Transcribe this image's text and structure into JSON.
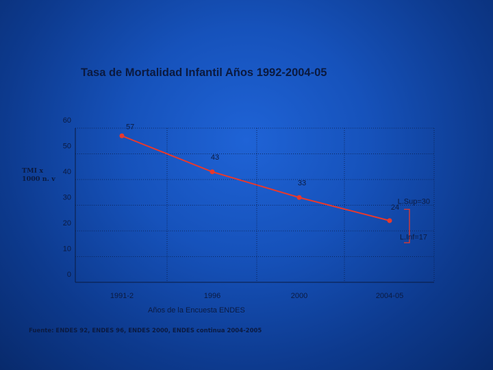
{
  "slide": {
    "y_axis_label_line1": "TMI x",
    "y_axis_label_line2": "1000 n. v",
    "source_note": "Fuente: ENDES 92, ENDES 96, ENDES 2000, ENDES continua 2004-2005"
  },
  "chart_data": {
    "type": "line",
    "title": "Tasa de Mortalidad Infantil Años 1992-2004-05",
    "xlabel": "Años de la Encuesta ENDES",
    "ylabel": "TMI x 1000 n. v",
    "categories": [
      "1991-2",
      "1996",
      "2000",
      "2004-05"
    ],
    "series": [
      {
        "name": "TMI",
        "values": [
          57,
          43,
          33,
          24
        ],
        "color": "#e8392c"
      }
    ],
    "ylim": [
      0,
      60
    ],
    "yticks": [
      0,
      10,
      20,
      30,
      40,
      50,
      60
    ],
    "grid": true,
    "annotations": [
      {
        "text": "L.Sup=30",
        "value": 30
      },
      {
        "text": "L.Inf=17",
        "value": 17
      }
    ],
    "colors": {
      "text": "#0b1a40",
      "grid": "#0a1a40"
    }
  }
}
